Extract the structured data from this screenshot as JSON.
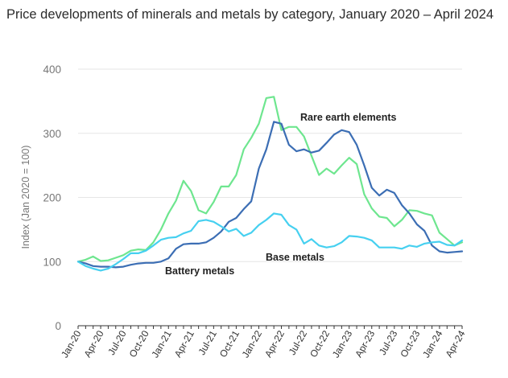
{
  "title": "Price developments of minerals and metals by category, January 2020 – April 2024",
  "chart_data": {
    "type": "line",
    "title": "Price developments of minerals and metals by category, January 2020 – April 2024",
    "ylabel": "Index (Jan 2020 = 100)",
    "xlabel": "",
    "ylim": [
      0,
      400
    ],
    "yticks": [
      0,
      100,
      200,
      300,
      400
    ],
    "grid": true,
    "x_tick_labels": [
      "Jan-20",
      "Apr-20",
      "Jul-20",
      "Oct-20",
      "Jan-21",
      "Apr-21",
      "Jul-21",
      "Oct-21",
      "Jan-22",
      "Apr-22",
      "Jul-22",
      "Oct-22",
      "Jan-23",
      "Apr-23",
      "Jul-23",
      "Oct-23",
      "Jan-24",
      "Apr-24"
    ],
    "series": [
      {
        "name": "Rare earth elements",
        "color": "#6ee68f",
        "values": [
          100,
          103,
          108,
          101,
          102,
          106,
          110,
          117,
          119,
          118,
          130,
          150,
          175,
          195,
          226,
          210,
          180,
          175,
          193,
          217,
          217,
          235,
          275,
          293,
          315,
          355,
          357,
          305,
          310,
          310,
          295,
          265,
          235,
          245,
          237,
          250,
          262,
          252,
          205,
          183,
          170,
          168,
          155,
          165,
          180,
          179,
          175,
          172,
          145,
          135,
          125,
          130
        ]
      },
      {
        "name": "Battery metals",
        "color": "#3c6eb4",
        "values": [
          100,
          97,
          93,
          92,
          92,
          91,
          92,
          95,
          97,
          98,
          98,
          100,
          105,
          120,
          127,
          128,
          128,
          130,
          137,
          147,
          162,
          168,
          182,
          194,
          245,
          275,
          318,
          315,
          282,
          272,
          275,
          270,
          273,
          285,
          298,
          305,
          302,
          282,
          250,
          215,
          203,
          212,
          207,
          188,
          175,
          158,
          148,
          125,
          116,
          114,
          115,
          116
        ]
      },
      {
        "name": "Base metals",
        "color": "#46d0f0",
        "values": [
          100,
          93,
          89,
          86,
          89,
          96,
          104,
          113,
          113,
          117,
          125,
          134,
          137,
          138,
          144,
          148,
          163,
          165,
          162,
          155,
          147,
          151,
          140,
          145,
          157,
          165,
          175,
          173,
          157,
          150,
          128,
          135,
          125,
          122,
          124,
          130,
          140,
          139,
          137,
          133,
          122,
          122,
          122,
          120,
          125,
          123,
          128,
          130,
          131,
          126,
          125,
          133
        ]
      }
    ],
    "labels": {
      "rare_earth": "Rare earth elements",
      "battery": "Battery metals",
      "base": "Base metals"
    }
  }
}
